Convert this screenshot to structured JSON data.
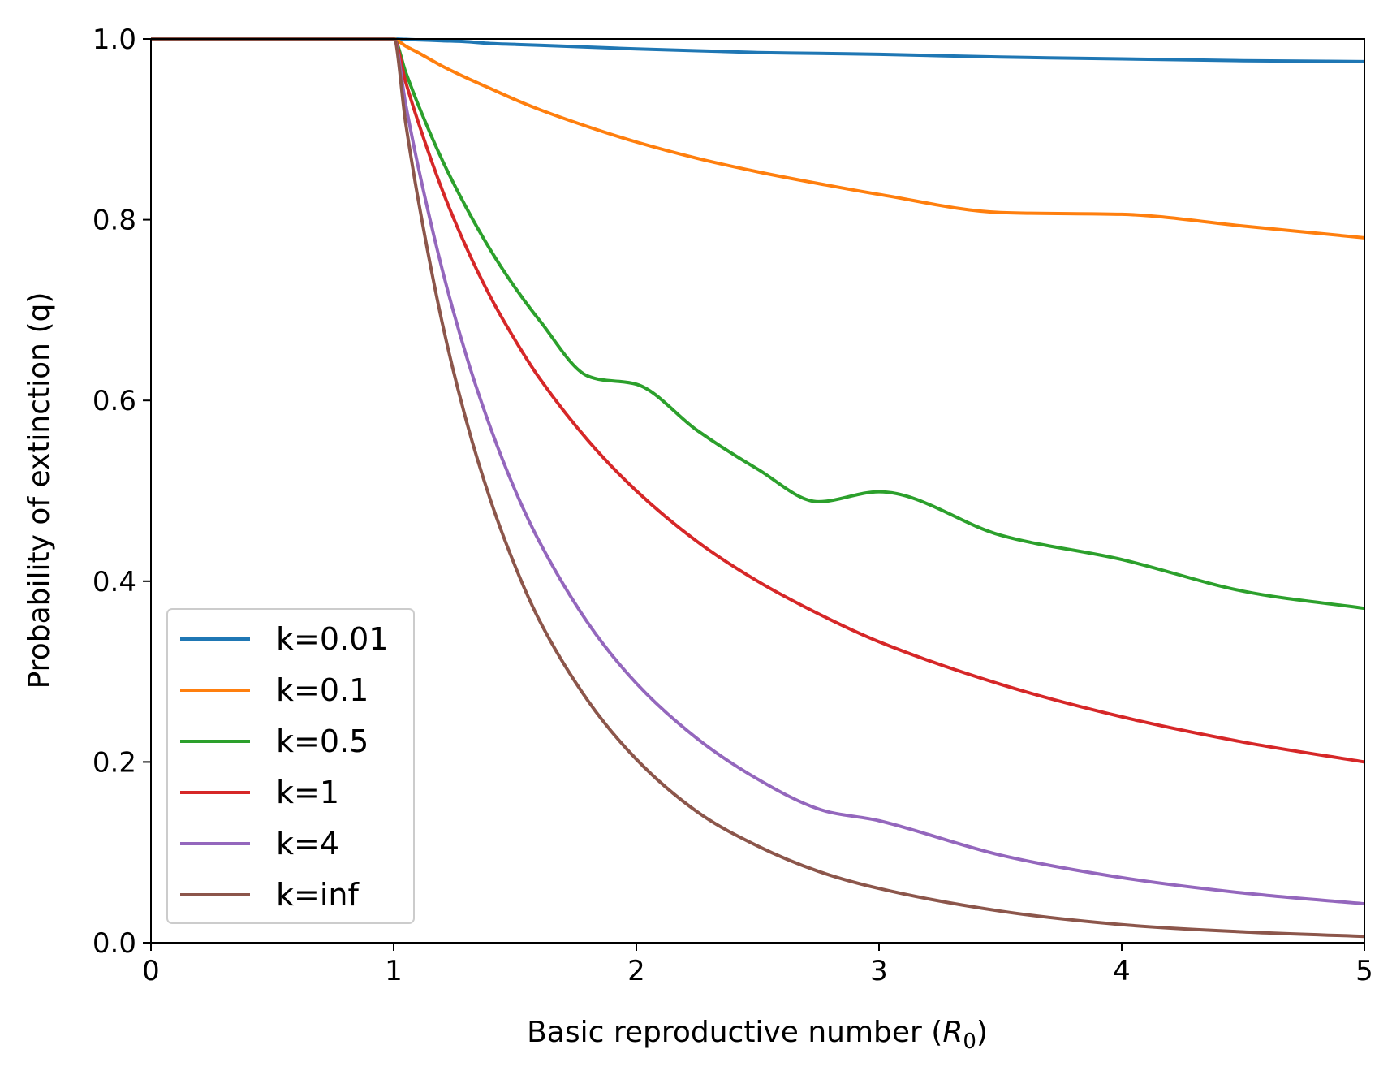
{
  "chart_data": {
    "type": "line",
    "title": "",
    "xlabel_prefix": "Basic reproductive number (",
    "xlabel_symbol": "R",
    "xlabel_subscript": "0",
    "xlabel_suffix": ")",
    "ylabel": "Probability of extinction (q)",
    "xlim": [
      0,
      5
    ],
    "ylim": [
      0.0,
      1.0
    ],
    "xticks": [
      "0",
      "1",
      "2",
      "3",
      "4",
      "5"
    ],
    "yticks": [
      "0.0",
      "0.2",
      "0.4",
      "0.6",
      "0.8",
      "1.0"
    ],
    "grid": false,
    "legend_position": "lower-left",
    "x": [
      0.0,
      0.25,
      0.5,
      0.75,
      0.95,
      1.0,
      1.05,
      1.1,
      1.2,
      1.3,
      1.4,
      1.5,
      1.6,
      1.8,
      2.0,
      2.25,
      2.5,
      2.75,
      3.0,
      3.5,
      4.0,
      4.5,
      5.0
    ],
    "series": [
      {
        "name": "k=0.01",
        "color": "#1f77b4",
        "values": [
          1.0,
          1.0,
          1.0,
          1.0,
          1.0,
          1.0,
          0.9995,
          0.999,
          0.998,
          0.997,
          0.995,
          0.994,
          0.993,
          0.991,
          0.989,
          0.987,
          0.985,
          0.984,
          0.983,
          0.98,
          0.978,
          0.976,
          0.975
        ]
      },
      {
        "name": "k=0.1",
        "color": "#ff7f0e",
        "values": [
          1.0,
          1.0,
          1.0,
          1.0,
          1.0,
          1.0,
          0.992,
          0.985,
          0.97,
          0.957,
          0.945,
          0.933,
          0.922,
          0.903,
          0.886,
          0.868,
          0.853,
          0.84,
          0.828,
          0.808,
          0.806,
          0.793,
          0.78
        ]
      },
      {
        "name": "k=0.5",
        "color": "#2ca02c",
        "values": [
          1.0,
          1.0,
          1.0,
          1.0,
          1.0,
          1.0,
          0.963,
          0.928,
          0.866,
          0.813,
          0.766,
          0.725,
          0.689,
          0.627,
          0.618,
          0.567,
          0.524,
          0.488,
          0.499,
          0.451,
          0.424,
          0.389,
          0.37
        ]
      },
      {
        "name": "k=1",
        "color": "#d62728",
        "values": [
          1.0,
          1.0,
          1.0,
          1.0,
          1.0,
          1.0,
          0.952,
          0.909,
          0.833,
          0.769,
          0.714,
          0.667,
          0.625,
          0.556,
          0.5,
          0.444,
          0.4,
          0.364,
          0.333,
          0.286,
          0.25,
          0.222,
          0.2
        ]
      },
      {
        "name": "k=4",
        "color": "#9467bd",
        "values": [
          1.0,
          1.0,
          1.0,
          1.0,
          1.0,
          1.0,
          0.927,
          0.86,
          0.745,
          0.649,
          0.569,
          0.501,
          0.444,
          0.354,
          0.287,
          0.226,
          0.181,
          0.148,
          0.135,
          0.097,
          0.072,
          0.055,
          0.043
        ]
      },
      {
        "name": "k=inf",
        "color": "#8c564b",
        "values": [
          1.0,
          1.0,
          1.0,
          1.0,
          1.0,
          1.0,
          0.906,
          0.824,
          0.686,
          0.577,
          0.489,
          0.417,
          0.357,
          0.268,
          0.203,
          0.145,
          0.107,
          0.079,
          0.06,
          0.035,
          0.02,
          0.012,
          0.007
        ]
      }
    ]
  }
}
